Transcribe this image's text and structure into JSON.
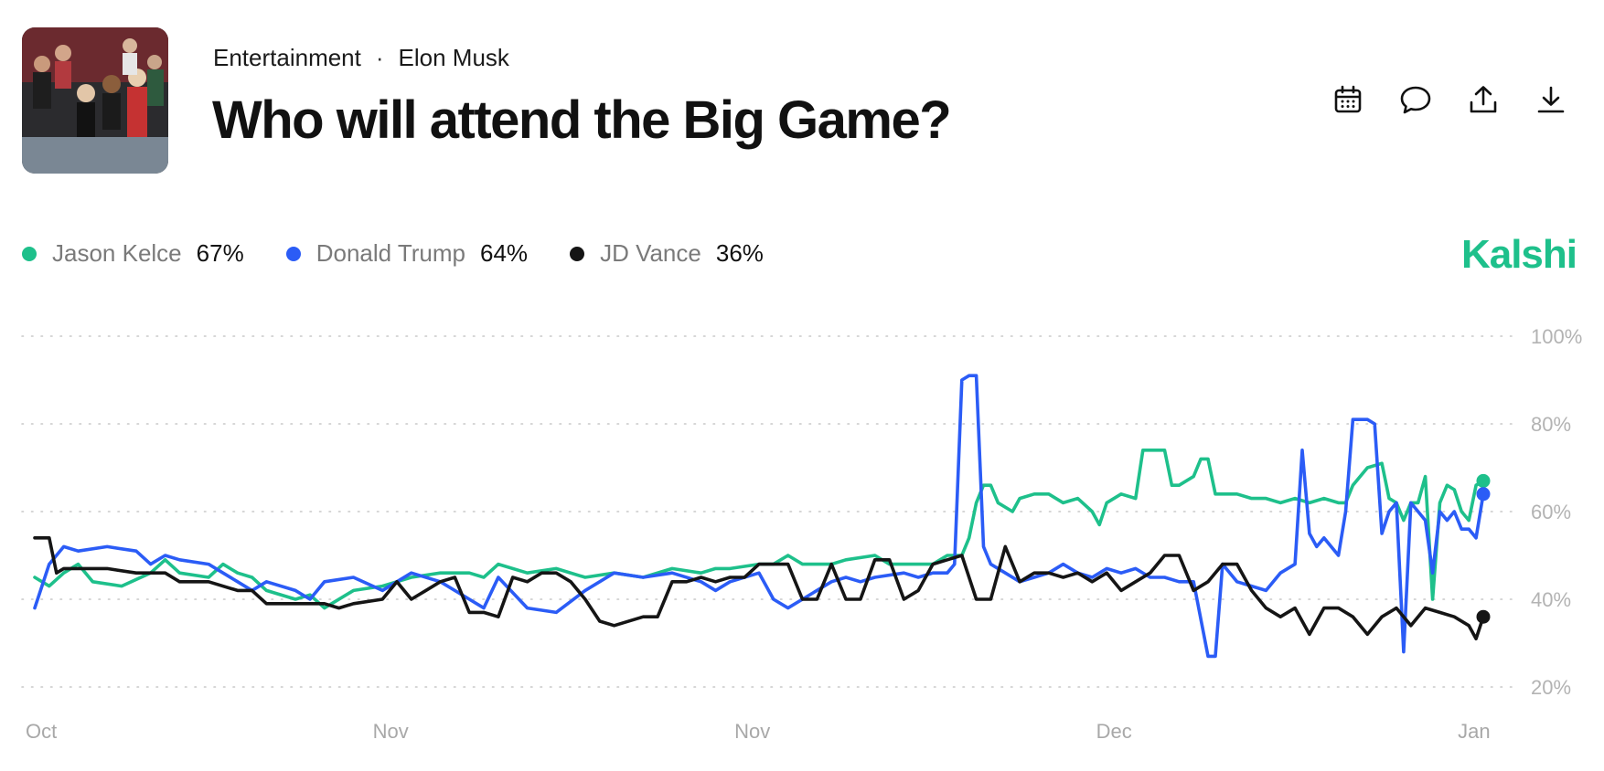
{
  "header": {
    "category": "Entertainment",
    "separator": "·",
    "subcategory": "Elon Musk",
    "title": "Who will attend the Big Game?"
  },
  "actions": [
    {
      "name": "calendar-icon"
    },
    {
      "name": "comment-icon"
    },
    {
      "name": "share-icon"
    },
    {
      "name": "download-icon"
    }
  ],
  "brand": {
    "name": "Kalshi",
    "color": "#1ec08b"
  },
  "legend": [
    {
      "name": "Jason Kelce",
      "value": "67%",
      "color": "#1ec08b"
    },
    {
      "name": "Donald Trump",
      "value": "64%",
      "color": "#2b5cf6"
    },
    {
      "name": "JD Vance",
      "value": "36%",
      "color": "#151515"
    }
  ],
  "chart_data": {
    "type": "line",
    "x_tick_labels": [
      "Oct",
      "Nov",
      "Nov",
      "Dec",
      "Jan"
    ],
    "x_tick_positions": [
      0,
      0.24,
      0.49,
      0.74,
      0.99
    ],
    "y_tick_labels": [
      "100%",
      "80%",
      "60%",
      "40%",
      "20%"
    ],
    "ylim": [
      20,
      100
    ],
    "grid": true,
    "series": [
      {
        "name": "Jason Kelce",
        "color": "#1ec08b",
        "end_value": 67,
        "points": [
          [
            0,
            45
          ],
          [
            0.01,
            43
          ],
          [
            0.02,
            46
          ],
          [
            0.03,
            48
          ],
          [
            0.04,
            44
          ],
          [
            0.06,
            43
          ],
          [
            0.08,
            46
          ],
          [
            0.09,
            49
          ],
          [
            0.1,
            46
          ],
          [
            0.12,
            45
          ],
          [
            0.13,
            48
          ],
          [
            0.14,
            46
          ],
          [
            0.15,
            45
          ],
          [
            0.16,
            42
          ],
          [
            0.18,
            40
          ],
          [
            0.19,
            41
          ],
          [
            0.2,
            38
          ],
          [
            0.22,
            42
          ],
          [
            0.24,
            43
          ],
          [
            0.26,
            45
          ],
          [
            0.28,
            46
          ],
          [
            0.3,
            46
          ],
          [
            0.31,
            45
          ],
          [
            0.32,
            48
          ],
          [
            0.34,
            46
          ],
          [
            0.36,
            47
          ],
          [
            0.38,
            45
          ],
          [
            0.4,
            46
          ],
          [
            0.42,
            45
          ],
          [
            0.44,
            47
          ],
          [
            0.46,
            46
          ],
          [
            0.47,
            47
          ],
          [
            0.48,
            47
          ],
          [
            0.5,
            48
          ],
          [
            0.51,
            48
          ],
          [
            0.52,
            50
          ],
          [
            0.53,
            48
          ],
          [
            0.55,
            48
          ],
          [
            0.56,
            49
          ],
          [
            0.58,
            50
          ],
          [
            0.59,
            48
          ],
          [
            0.6,
            48
          ],
          [
            0.61,
            48
          ],
          [
            0.62,
            48
          ],
          [
            0.63,
            50
          ],
          [
            0.64,
            50
          ],
          [
            0.645,
            54
          ],
          [
            0.65,
            62
          ],
          [
            0.655,
            66
          ],
          [
            0.66,
            66
          ],
          [
            0.665,
            62
          ],
          [
            0.675,
            60
          ],
          [
            0.68,
            63
          ],
          [
            0.69,
            64
          ],
          [
            0.7,
            64
          ],
          [
            0.71,
            62
          ],
          [
            0.72,
            63
          ],
          [
            0.73,
            60
          ],
          [
            0.735,
            57
          ],
          [
            0.74,
            62
          ],
          [
            0.75,
            64
          ],
          [
            0.76,
            63
          ],
          [
            0.765,
            74
          ],
          [
            0.78,
            74
          ],
          [
            0.785,
            66
          ],
          [
            0.79,
            66
          ],
          [
            0.8,
            68
          ],
          [
            0.805,
            72
          ],
          [
            0.81,
            72
          ],
          [
            0.815,
            64
          ],
          [
            0.83,
            64
          ],
          [
            0.84,
            63
          ],
          [
            0.85,
            63
          ],
          [
            0.86,
            62
          ],
          [
            0.87,
            63
          ],
          [
            0.88,
            62
          ],
          [
            0.89,
            63
          ],
          [
            0.9,
            62
          ],
          [
            0.905,
            62
          ],
          [
            0.91,
            66
          ],
          [
            0.92,
            70
          ],
          [
            0.93,
            71
          ],
          [
            0.935,
            63
          ],
          [
            0.94,
            62
          ],
          [
            0.945,
            58
          ],
          [
            0.95,
            62
          ],
          [
            0.955,
            62
          ],
          [
            0.96,
            68
          ],
          [
            0.965,
            40
          ],
          [
            0.97,
            62
          ],
          [
            0.975,
            66
          ],
          [
            0.98,
            65
          ],
          [
            0.985,
            60
          ],
          [
            0.99,
            58
          ],
          [
            0.995,
            66
          ],
          [
            1,
            67
          ]
        ]
      },
      {
        "name": "Donald Trump",
        "color": "#2b5cf6",
        "end_value": 64,
        "points": [
          [
            0,
            38
          ],
          [
            0.01,
            48
          ],
          [
            0.02,
            52
          ],
          [
            0.03,
            51
          ],
          [
            0.05,
            52
          ],
          [
            0.07,
            51
          ],
          [
            0.08,
            48
          ],
          [
            0.09,
            50
          ],
          [
            0.1,
            49
          ],
          [
            0.12,
            48
          ],
          [
            0.13,
            46
          ],
          [
            0.14,
            44
          ],
          [
            0.15,
            42
          ],
          [
            0.16,
            44
          ],
          [
            0.18,
            42
          ],
          [
            0.19,
            40
          ],
          [
            0.2,
            44
          ],
          [
            0.22,
            45
          ],
          [
            0.24,
            42
          ],
          [
            0.26,
            46
          ],
          [
            0.28,
            44
          ],
          [
            0.3,
            40
          ],
          [
            0.31,
            38
          ],
          [
            0.32,
            45
          ],
          [
            0.34,
            38
          ],
          [
            0.36,
            37
          ],
          [
            0.38,
            42
          ],
          [
            0.4,
            46
          ],
          [
            0.42,
            45
          ],
          [
            0.44,
            46
          ],
          [
            0.46,
            44
          ],
          [
            0.47,
            42
          ],
          [
            0.48,
            44
          ],
          [
            0.5,
            46
          ],
          [
            0.51,
            40
          ],
          [
            0.52,
            38
          ],
          [
            0.53,
            40
          ],
          [
            0.55,
            44
          ],
          [
            0.56,
            45
          ],
          [
            0.57,
            44
          ],
          [
            0.58,
            45
          ],
          [
            0.6,
            46
          ],
          [
            0.61,
            45
          ],
          [
            0.62,
            46
          ],
          [
            0.63,
            46
          ],
          [
            0.635,
            48
          ],
          [
            0.64,
            90
          ],
          [
            0.645,
            91
          ],
          [
            0.65,
            91
          ],
          [
            0.655,
            52
          ],
          [
            0.66,
            48
          ],
          [
            0.67,
            46
          ],
          [
            0.68,
            44
          ],
          [
            0.69,
            45
          ],
          [
            0.7,
            46
          ],
          [
            0.71,
            48
          ],
          [
            0.72,
            46
          ],
          [
            0.73,
            45
          ],
          [
            0.74,
            47
          ],
          [
            0.75,
            46
          ],
          [
            0.76,
            47
          ],
          [
            0.77,
            45
          ],
          [
            0.78,
            45
          ],
          [
            0.79,
            44
          ],
          [
            0.8,
            44
          ],
          [
            0.81,
            27
          ],
          [
            0.815,
            27
          ],
          [
            0.82,
            48
          ],
          [
            0.83,
            44
          ],
          [
            0.84,
            43
          ],
          [
            0.85,
            42
          ],
          [
            0.86,
            46
          ],
          [
            0.87,
            48
          ],
          [
            0.875,
            74
          ],
          [
            0.88,
            55
          ],
          [
            0.885,
            52
          ],
          [
            0.89,
            54
          ],
          [
            0.9,
            50
          ],
          [
            0.905,
            60
          ],
          [
            0.91,
            81
          ],
          [
            0.92,
            81
          ],
          [
            0.925,
            80
          ],
          [
            0.93,
            55
          ],
          [
            0.935,
            60
          ],
          [
            0.94,
            62
          ],
          [
            0.945,
            28
          ],
          [
            0.95,
            62
          ],
          [
            0.955,
            60
          ],
          [
            0.96,
            58
          ],
          [
            0.965,
            46
          ],
          [
            0.97,
            60
          ],
          [
            0.975,
            58
          ],
          [
            0.98,
            60
          ],
          [
            0.985,
            56
          ],
          [
            0.99,
            56
          ],
          [
            0.995,
            54
          ],
          [
            1,
            64
          ]
        ]
      },
      {
        "name": "JD Vance",
        "color": "#151515",
        "end_value": 36,
        "points": [
          [
            0,
            54
          ],
          [
            0.01,
            54
          ],
          [
            0.015,
            46
          ],
          [
            0.02,
            47
          ],
          [
            0.05,
            47
          ],
          [
            0.07,
            46
          ],
          [
            0.09,
            46
          ],
          [
            0.1,
            44
          ],
          [
            0.12,
            44
          ],
          [
            0.14,
            42
          ],
          [
            0.15,
            42
          ],
          [
            0.16,
            39
          ],
          [
            0.18,
            39
          ],
          [
            0.2,
            39
          ],
          [
            0.21,
            38
          ],
          [
            0.22,
            39
          ],
          [
            0.24,
            40
          ],
          [
            0.25,
            44
          ],
          [
            0.26,
            40
          ],
          [
            0.27,
            42
          ],
          [
            0.28,
            44
          ],
          [
            0.29,
            45
          ],
          [
            0.3,
            37
          ],
          [
            0.31,
            37
          ],
          [
            0.32,
            36
          ],
          [
            0.33,
            45
          ],
          [
            0.34,
            44
          ],
          [
            0.35,
            46
          ],
          [
            0.36,
            46
          ],
          [
            0.37,
            44
          ],
          [
            0.38,
            40
          ],
          [
            0.39,
            35
          ],
          [
            0.4,
            34
          ],
          [
            0.42,
            36
          ],
          [
            0.43,
            36
          ],
          [
            0.44,
            44
          ],
          [
            0.45,
            44
          ],
          [
            0.46,
            45
          ],
          [
            0.47,
            44
          ],
          [
            0.48,
            45
          ],
          [
            0.49,
            45
          ],
          [
            0.5,
            48
          ],
          [
            0.51,
            48
          ],
          [
            0.52,
            48
          ],
          [
            0.53,
            40
          ],
          [
            0.54,
            40
          ],
          [
            0.55,
            48
          ],
          [
            0.56,
            40
          ],
          [
            0.57,
            40
          ],
          [
            0.58,
            49
          ],
          [
            0.59,
            49
          ],
          [
            0.6,
            40
          ],
          [
            0.61,
            42
          ],
          [
            0.62,
            48
          ],
          [
            0.63,
            49
          ],
          [
            0.64,
            50
          ],
          [
            0.65,
            40
          ],
          [
            0.66,
            40
          ],
          [
            0.67,
            52
          ],
          [
            0.68,
            44
          ],
          [
            0.69,
            46
          ],
          [
            0.7,
            46
          ],
          [
            0.71,
            45
          ],
          [
            0.72,
            46
          ],
          [
            0.73,
            44
          ],
          [
            0.74,
            46
          ],
          [
            0.75,
            42
          ],
          [
            0.76,
            44
          ],
          [
            0.77,
            46
          ],
          [
            0.78,
            50
          ],
          [
            0.79,
            50
          ],
          [
            0.8,
            42
          ],
          [
            0.81,
            44
          ],
          [
            0.82,
            48
          ],
          [
            0.83,
            48
          ],
          [
            0.84,
            42
          ],
          [
            0.85,
            38
          ],
          [
            0.86,
            36
          ],
          [
            0.87,
            38
          ],
          [
            0.88,
            32
          ],
          [
            0.89,
            38
          ],
          [
            0.9,
            38
          ],
          [
            0.91,
            36
          ],
          [
            0.92,
            32
          ],
          [
            0.93,
            36
          ],
          [
            0.94,
            38
          ],
          [
            0.95,
            34
          ],
          [
            0.96,
            38
          ],
          [
            0.97,
            37
          ],
          [
            0.98,
            36
          ],
          [
            0.99,
            34
          ],
          [
            0.995,
            31
          ],
          [
            1,
            36
          ]
        ]
      }
    ]
  }
}
